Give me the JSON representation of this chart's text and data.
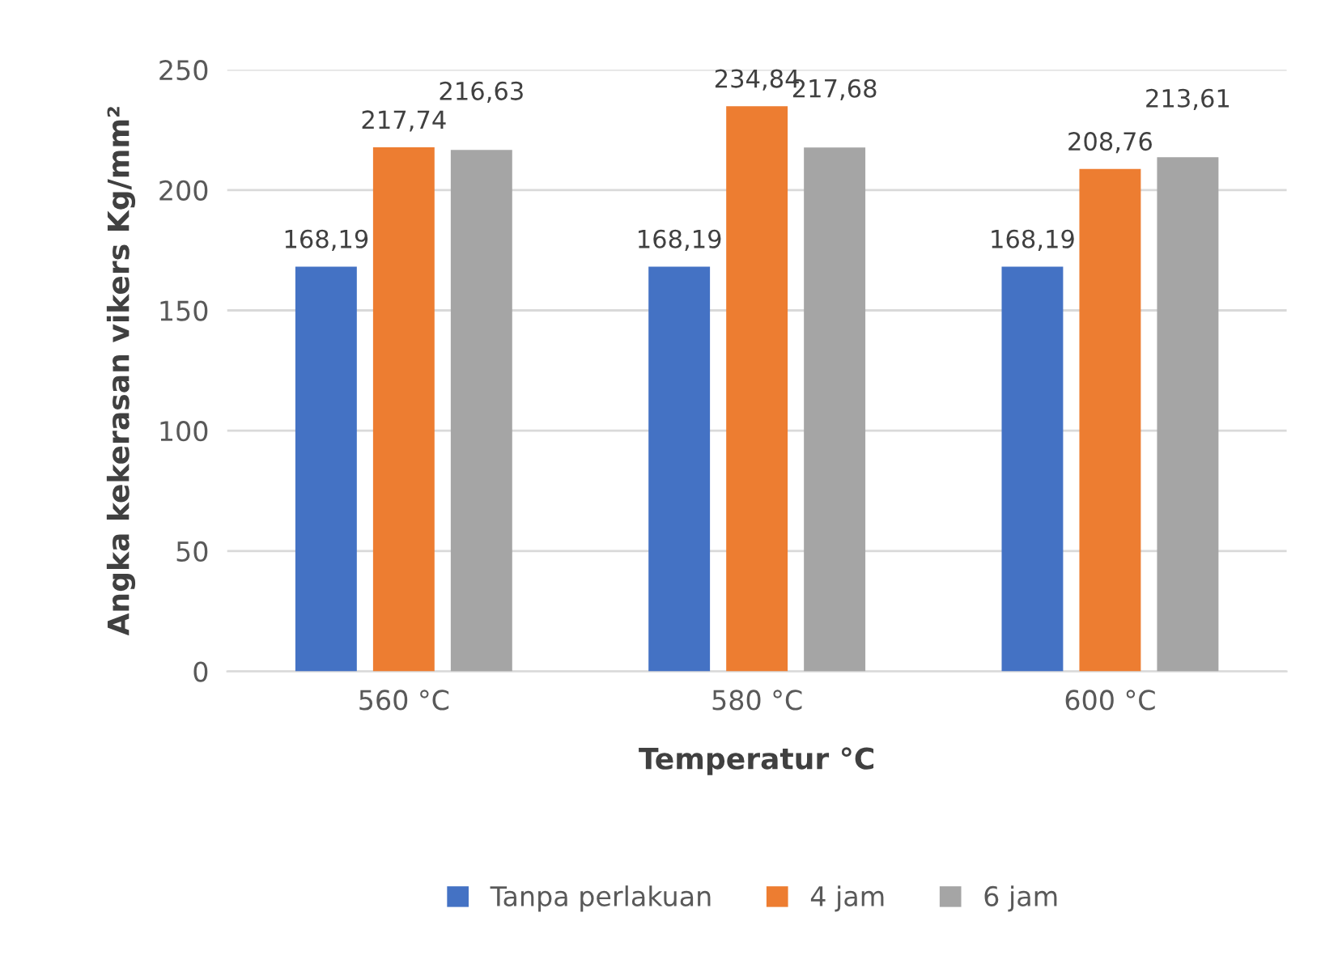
{
  "chart_data": {
    "type": "bar",
    "xlabel": "Temperatur °C",
    "ylabel": "Angka kekerasan vikers Kg/mm²",
    "categories": [
      "560 °C",
      "580 °C",
      "600 °C"
    ],
    "series": [
      {
        "name": "Tanpa perlakuan",
        "color": "#4472c4",
        "values": [
          168.19,
          168.19,
          168.19
        ],
        "value_labels": [
          "168,19",
          "168,19",
          "168,19"
        ]
      },
      {
        "name": "4 jam",
        "color": "#ed7d31",
        "values": [
          217.74,
          234.84,
          208.76
        ],
        "value_labels": [
          "217,74",
          "234,84",
          "208,76"
        ]
      },
      {
        "name": "6 jam",
        "color": "#a5a5a5",
        "values": [
          216.63,
          217.68,
          213.61
        ],
        "value_labels": [
          "216,63",
          "217,68",
          "213,61"
        ]
      }
    ],
    "ylim": [
      0,
      250
    ],
    "yticks": [
      0,
      50,
      100,
      150,
      200,
      250
    ],
    "grid": "y",
    "legend": "bottom"
  }
}
